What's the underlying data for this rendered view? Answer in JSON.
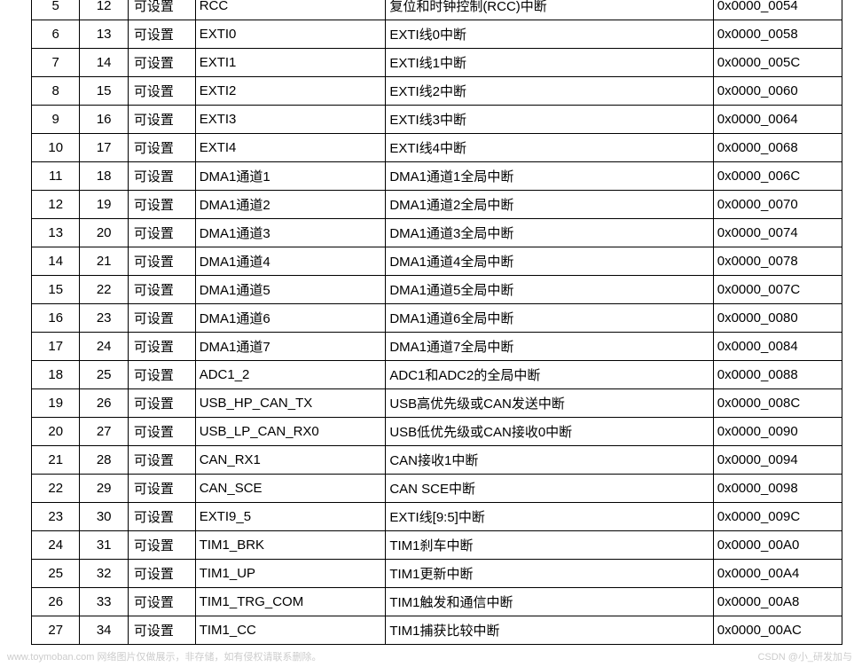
{
  "table": {
    "columns": [
      "col0",
      "col1",
      "col2",
      "col3",
      "col4",
      "col5"
    ],
    "rows": [
      [
        "5",
        "12",
        "可设置",
        "RCC",
        "复位和时钟控制(RCC)中断",
        "0x0000_0054"
      ],
      [
        "6",
        "13",
        "可设置",
        "EXTI0",
        "EXTI线0中断",
        "0x0000_0058"
      ],
      [
        "7",
        "14",
        "可设置",
        "EXTI1",
        "EXTI线1中断",
        "0x0000_005C"
      ],
      [
        "8",
        "15",
        "可设置",
        "EXTI2",
        "EXTI线2中断",
        "0x0000_0060"
      ],
      [
        "9",
        "16",
        "可设置",
        "EXTI3",
        "EXTI线3中断",
        "0x0000_0064"
      ],
      [
        "10",
        "17",
        "可设置",
        "EXTI4",
        "EXTI线4中断",
        "0x0000_0068"
      ],
      [
        "11",
        "18",
        "可设置",
        "DMA1通道1",
        "DMA1通道1全局中断",
        "0x0000_006C"
      ],
      [
        "12",
        "19",
        "可设置",
        "DMA1通道2",
        "DMA1通道2全局中断",
        "0x0000_0070"
      ],
      [
        "13",
        "20",
        "可设置",
        "DMA1通道3",
        "DMA1通道3全局中断",
        "0x0000_0074"
      ],
      [
        "14",
        "21",
        "可设置",
        "DMA1通道4",
        "DMA1通道4全局中断",
        "0x0000_0078"
      ],
      [
        "15",
        "22",
        "可设置",
        "DMA1通道5",
        "DMA1通道5全局中断",
        "0x0000_007C"
      ],
      [
        "16",
        "23",
        "可设置",
        "DMA1通道6",
        "DMA1通道6全局中断",
        "0x0000_0080"
      ],
      [
        "17",
        "24",
        "可设置",
        "DMA1通道7",
        "DMA1通道7全局中断",
        "0x0000_0084"
      ],
      [
        "18",
        "25",
        "可设置",
        "ADC1_2",
        "ADC1和ADC2的全局中断",
        "0x0000_0088"
      ],
      [
        "19",
        "26",
        "可设置",
        "USB_HP_CAN_TX",
        "USB高优先级或CAN发送中断",
        "0x0000_008C"
      ],
      [
        "20",
        "27",
        "可设置",
        "USB_LP_CAN_RX0",
        "USB低优先级或CAN接收0中断",
        "0x0000_0090"
      ],
      [
        "21",
        "28",
        "可设置",
        "CAN_RX1",
        "CAN接收1中断",
        "0x0000_0094"
      ],
      [
        "22",
        "29",
        "可设置",
        "CAN_SCE",
        "CAN SCE中断",
        "0x0000_0098"
      ],
      [
        "23",
        "30",
        "可设置",
        "EXTI9_5",
        "EXTI线[9:5]中断",
        "0x0000_009C"
      ],
      [
        "24",
        "31",
        "可设置",
        "TIM1_BRK",
        "TIM1刹车中断",
        "0x0000_00A0"
      ],
      [
        "25",
        "32",
        "可设置",
        "TIM1_UP",
        "TIM1更新中断",
        "0x0000_00A4"
      ],
      [
        "26",
        "33",
        "可设置",
        "TIM1_TRG_COM",
        "TIM1触发和通信中断",
        "0x0000_00A8"
      ],
      [
        "27",
        "34",
        "可设置",
        "TIM1_CC",
        "TIM1捕获比较中断",
        "0x0000_00AC"
      ]
    ]
  },
  "footer": {
    "left": "www.toymoban.com 网络图片仅做展示，非存储，如有侵权请联系删除。",
    "right": "CSDN @小_研发加与"
  }
}
